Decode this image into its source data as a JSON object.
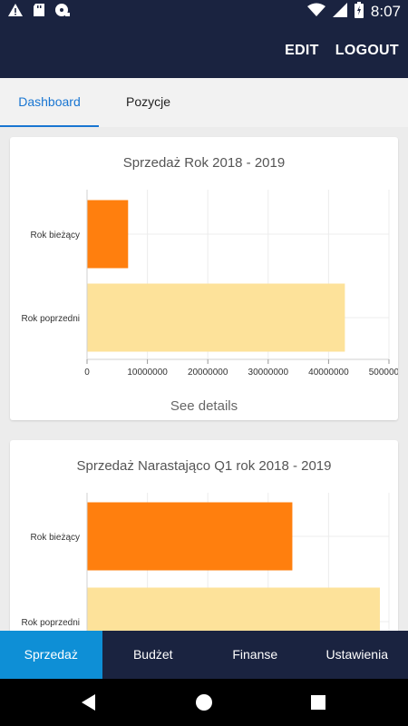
{
  "status_bar": {
    "time": "8:07",
    "icons": [
      "warning-icon",
      "sd-card-icon",
      "disc-icon",
      "wifi-icon",
      "signal-icon",
      "battery-icon"
    ]
  },
  "app_bar": {
    "edit_label": "EDIT",
    "logout_label": "LOGOUT"
  },
  "tabs": [
    {
      "label": "Dashboard",
      "active": true
    },
    {
      "label": "Pozycje",
      "active": false
    }
  ],
  "cards": [
    {
      "title": "Sprzedaż Rok 2018 - 2019",
      "link": "See details"
    },
    {
      "title": "Sprzedaż Narastająco Q1 rok 2018 - 2019"
    }
  ],
  "chart_data": [
    {
      "type": "bar",
      "orientation": "horizontal",
      "title": "Sprzedaż Rok 2018 - 2019",
      "categories": [
        "Rok bieżący",
        "Rok poprzedni"
      ],
      "values": [
        6800000,
        42700000
      ],
      "colors": [
        "#ff7f0e",
        "#fde29a"
      ],
      "xlim": [
        0,
        50000000
      ],
      "xticks": [
        "0",
        "10000000",
        "20000000",
        "30000000",
        "40000000",
        "50000000"
      ],
      "xtick_values": [
        0,
        10000000,
        20000000,
        30000000,
        40000000,
        50000000
      ],
      "grid": true
    },
    {
      "type": "bar",
      "orientation": "horizontal",
      "title": "Sprzedaż Narastająco Q1 rok 2018 - 2019",
      "categories": [
        "Rok bieżący",
        "Rok poprzedni"
      ],
      "values": [
        6800000,
        9700000
      ],
      "colors": [
        "#ff7f0e",
        "#fde29a"
      ],
      "xlim": [
        0,
        10000000
      ],
      "grid": true
    }
  ],
  "bottom_nav": [
    {
      "label": "Sprzedaż",
      "active": true
    },
    {
      "label": "Budżet",
      "active": false
    },
    {
      "label": "Finanse",
      "active": false
    },
    {
      "label": "Ustawienia",
      "active": false
    }
  ],
  "colors": {
    "primary_dark": "#1a2340",
    "accent_blue": "#1976d2",
    "nav_active": "#0e8fd6",
    "bar_current": "#ff7f0e",
    "bar_previous": "#fde29a"
  }
}
